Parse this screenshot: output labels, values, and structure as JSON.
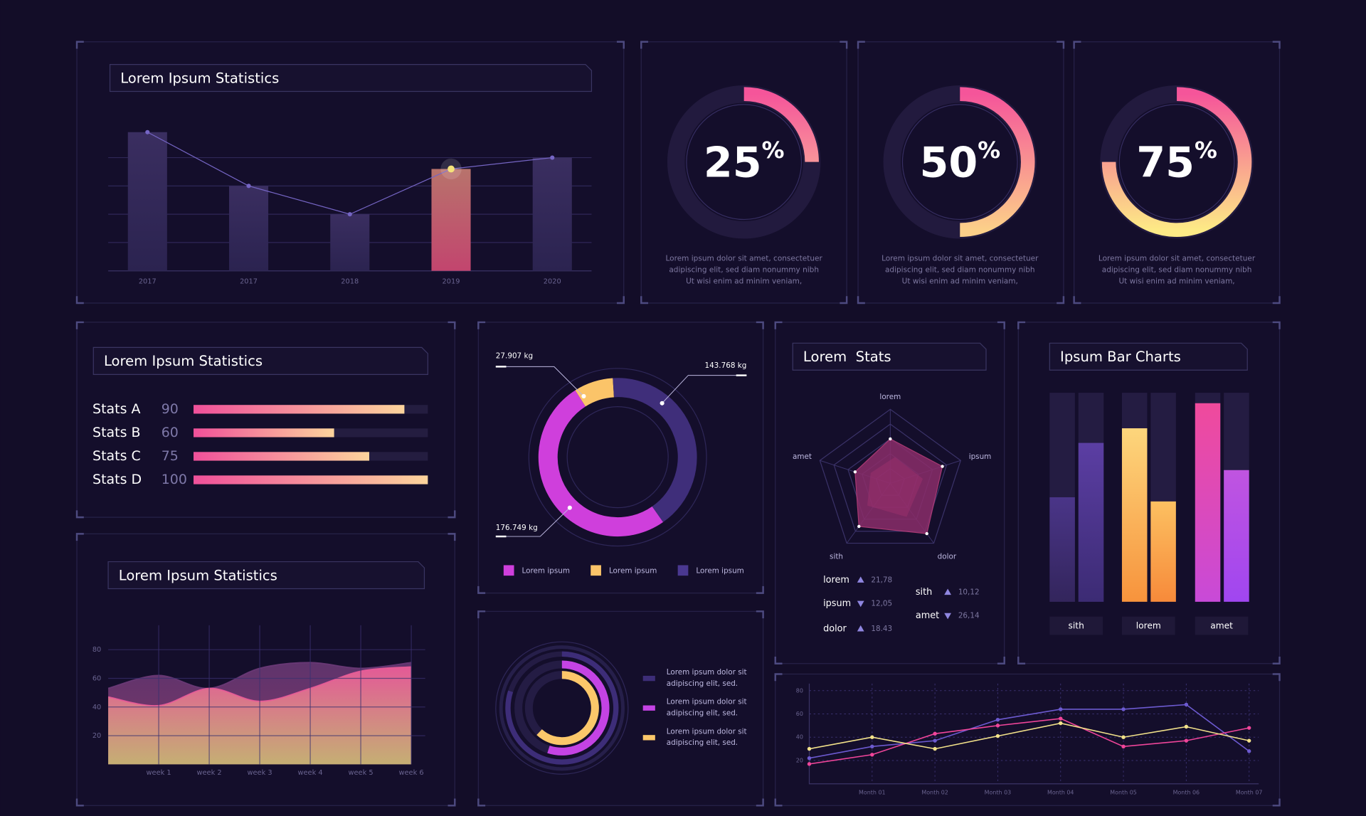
{
  "chart_data": [
    {
      "type": "bar",
      "title": "Lorem Ipsum Statistics",
      "categories": [
        "2017",
        "2017",
        "2018",
        "2019",
        "2020"
      ],
      "values": [
        4.9,
        3,
        2,
        3.6,
        4
      ],
      "color": "#3a2e60",
      "highlight": 3,
      "highlight_color": "#c2456e",
      "line": {
        "values": [
          4.9,
          3,
          2,
          3.6,
          4
        ],
        "color": "#7565c4"
      },
      "ylim": [
        0,
        5.2
      ],
      "yticks": [
        1,
        2,
        3,
        4
      ],
      "grid": true
    },
    {
      "type": "gauge",
      "value": 25,
      "unit": "%",
      "lim": [
        0,
        100
      ],
      "colors": [
        "#f5559a",
        "#fbd49a"
      ],
      "description": [
        "Lorem ipsum dolor sit amet, consectetuer",
        "adipiscing elit, sed diam nonummy nibh",
        "Ut wisi enim ad minim veniam,"
      ]
    },
    {
      "type": "gauge",
      "value": 50,
      "unit": "%",
      "lim": [
        0,
        100
      ],
      "colors": [
        "#f5559a",
        "#fcd089"
      ],
      "description": [
        "Lorem ipsum dolor sit amet, consectetuer",
        "adipiscing elit, sed diam nonummy nibh",
        "Ut wisi enim ad minim veniam,"
      ]
    },
    {
      "type": "gauge",
      "value": 75,
      "unit": "%",
      "lim": [
        0,
        100
      ],
      "colors": [
        "#f5559a",
        "#fdea86"
      ],
      "description": [
        "Lorem ipsum dolor sit amet, consectetuer",
        "adipiscing elit, sed diam nonummy nibh",
        "Ut wisi enim ad minim veniam,"
      ]
    },
    {
      "type": "hbar",
      "title": "Lorem Ipsum Statistics",
      "categories": [
        "Stats A",
        "Stats B",
        "Stats C",
        "Stats D"
      ],
      "values": [
        90,
        60,
        75,
        100
      ],
      "xlim": [
        0,
        100
      ],
      "colors": [
        "#f0509a",
        "#fcd49c"
      ]
    },
    {
      "type": "area",
      "title": "Lorem Ipsum Statistics",
      "categories": [
        null,
        "week 1",
        "week 2",
        "week 3",
        "week 4",
        "week 5",
        "week 6"
      ],
      "series": [
        {
          "color": "#6c3a78",
          "color_bottom": "#8f3f72",
          "values": [
            53,
            62,
            53,
            67,
            71,
            67,
            71
          ]
        },
        {
          "color": "#ea5c99",
          "color_bottom": "#c9b574",
          "values": [
            47,
            41,
            53,
            44,
            53,
            65,
            68
          ]
        }
      ],
      "ylim": [
        0,
        97
      ],
      "yticks": [
        20,
        40,
        60,
        80
      ],
      "grid": true
    },
    {
      "type": "donut",
      "series": [
        {
          "name": "Lorem ipsum",
          "color": "#cf3fdc",
          "value": 176.749,
          "value_label": "176.749 kg"
        },
        {
          "name": "Lorem ipsum",
          "color": "#fbc469",
          "value": 27.907,
          "value_label": "27.907 kg"
        },
        {
          "name": "Lorem ipsum",
          "color": "#3f2e7a",
          "value": 143.768,
          "value_label": "143.768 kg"
        }
      ]
    },
    {
      "type": "rings",
      "lim": [
        0,
        100
      ],
      "series": [
        {
          "label": [
            "Lorem ipsum dolor sit",
            "adipiscing elit, sed."
          ],
          "color": "#3d2d78",
          "value": 80
        },
        {
          "label": [
            "Lorem ipsum dolor sit",
            "adipiscing elit, sed."
          ],
          "color": "#c443e4",
          "value": 55
        },
        {
          "label": [
            "Lorem ipsum dolor sit",
            "adipiscing elit, sed."
          ],
          "color": "#fbc76a",
          "value": 62
        }
      ]
    },
    {
      "type": "radar",
      "title": "Lorem  Stats",
      "axes": [
        "lorem",
        "ipsum",
        "dolor",
        "sith",
        "amet"
      ],
      "values": [
        3,
        3.7,
        4.2,
        3.6,
        2.5
      ],
      "rlim": [
        0,
        5
      ],
      "rticks": [
        1,
        2,
        3,
        4,
        5
      ],
      "color": "#8a2d6a",
      "stats": [
        {
          "name": "lorem",
          "value": 21.78,
          "value_label": "21,78",
          "trend": "up"
        },
        {
          "name": "ipsum",
          "value": 12.05,
          "value_label": "12,05",
          "trend": "down"
        },
        {
          "name": "dolor",
          "value": 18.43,
          "value_label": "18.43",
          "trend": "up"
        },
        {
          "name": "sith",
          "value": 10.12,
          "value_label": "10,12",
          "trend": "up"
        },
        {
          "name": "amet",
          "value": 26.14,
          "value_label": "26,14",
          "trend": "down"
        }
      ]
    },
    {
      "type": "grouped_bar",
      "title": "Ipsum Bar Charts",
      "categories": [
        "sith",
        "lorem",
        "amet"
      ],
      "ylim": [
        0,
        100
      ],
      "series": [
        {
          "values": [
            50,
            83,
            95
          ],
          "colors": [
            [
              "#4a3588",
              "#33255c"
            ],
            [
              "#fdd67c",
              "#f7933c"
            ],
            [
              "#f04a9c",
              "#c84ad8"
            ]
          ]
        },
        {
          "values": [
            76,
            48,
            63
          ],
          "colors": [
            [
              "#5b3ea3",
              "#3c2b74"
            ],
            [
              "#fcc061",
              "#f78a3a"
            ],
            [
              "#c054e0",
              "#a046f0"
            ]
          ]
        }
      ]
    },
    {
      "type": "line",
      "categories": [
        null,
        "Month 01",
        "Month 02",
        "Month 03",
        "Month 04",
        "Month 05",
        "Month 06",
        "Month 07"
      ],
      "series": [
        {
          "color": "#6c5ad0",
          "values": [
            22,
            32,
            37,
            55,
            64,
            64,
            68,
            28
          ]
        },
        {
          "color": "#f0459a",
          "values": [
            17,
            25,
            43,
            50,
            56,
            32,
            37,
            48
          ]
        },
        {
          "color": "#f3e28a",
          "values": [
            30,
            40,
            30,
            41,
            52,
            40,
            49,
            37
          ]
        }
      ],
      "ylim": [
        0,
        86
      ],
      "yticks": [
        20,
        40,
        60,
        80
      ],
      "grid": true
    }
  ]
}
